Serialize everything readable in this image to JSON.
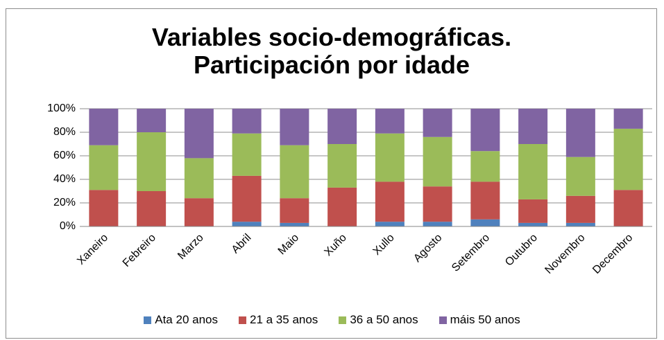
{
  "chart_data": {
    "type": "stacked_bar_100",
    "title": "Variables socio-demográficas. Participación por idade",
    "categories": [
      "Xaneiro",
      "Febreiro",
      "Marzo",
      "Abril",
      "Maio",
      "Xuño",
      "Xullo",
      "Agosto",
      "Setembro",
      "Outubro",
      "Novembro",
      "Decembro"
    ],
    "series": [
      {
        "name": "Ata 20 anos",
        "color": "#4f81bd",
        "values": [
          0,
          0,
          0,
          4,
          3,
          0,
          4,
          4,
          6,
          3,
          3,
          0
        ]
      },
      {
        "name": "21 a 35 anos",
        "color": "#c0504d",
        "values": [
          31,
          30,
          24,
          39,
          21,
          33,
          34,
          30,
          32,
          20,
          23,
          31
        ]
      },
      {
        "name": "36 a 50 anos",
        "color": "#9bbb59",
        "values": [
          38,
          50,
          34,
          36,
          45,
          37,
          41,
          42,
          26,
          47,
          33,
          52
        ]
      },
      {
        "name": "máis 50 anos",
        "color": "#8064a2",
        "values": [
          31,
          20,
          42,
          21,
          31,
          30,
          21,
          24,
          36,
          30,
          41,
          17
        ]
      }
    ],
    "ylim": [
      0,
      100
    ],
    "yticks": [
      {
        "value": 0,
        "label": "0%"
      },
      {
        "value": 20,
        "label": "20%"
      },
      {
        "value": 40,
        "label": "40%"
      },
      {
        "value": 60,
        "label": "60%"
      },
      {
        "value": 80,
        "label": "80%"
      },
      {
        "value": 100,
        "label": "100%"
      }
    ],
    "grid": true,
    "legend": "bottom"
  }
}
